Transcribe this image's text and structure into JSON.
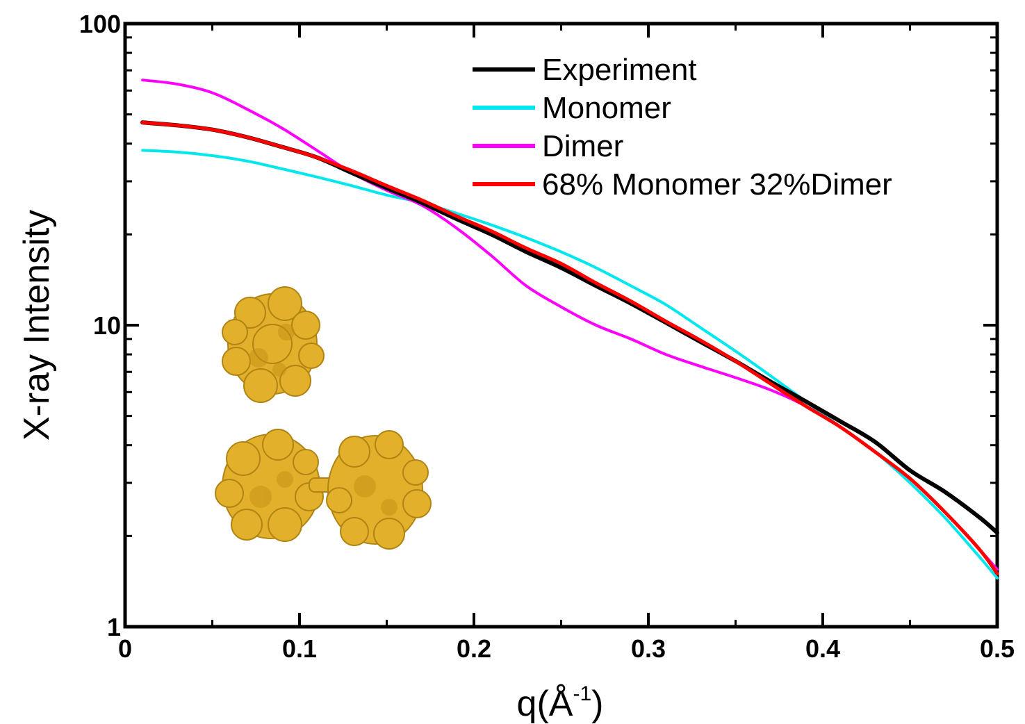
{
  "chart_data": {
    "type": "line",
    "xlabel": "q(Å",
    "xlabel_sup": "-1",
    "xlabel_close": ")",
    "ylabel": "X-ray Intensity",
    "xlim": [
      0,
      0.5
    ],
    "ylim": [
      1,
      100
    ],
    "yscale": "log",
    "grid": false,
    "legend_position": "top-right",
    "x_ticks": [
      0,
      0.1,
      0.2,
      0.3,
      0.4,
      0.5
    ],
    "x_tick_labels": [
      "0",
      "0.1",
      "0.2",
      "0.3",
      "0.4",
      "0.5"
    ],
    "y_ticks": [
      1,
      10,
      100
    ],
    "y_tick_labels": [
      "1",
      "10",
      "100"
    ],
    "x": [
      0.01,
      0.03,
      0.05,
      0.07,
      0.09,
      0.11,
      0.13,
      0.15,
      0.17,
      0.19,
      0.21,
      0.23,
      0.25,
      0.27,
      0.29,
      0.31,
      0.33,
      0.35,
      0.37,
      0.39,
      0.41,
      0.43,
      0.45,
      0.47,
      0.49,
      0.5
    ],
    "series": [
      {
        "name": "Experiment",
        "color": "#000000",
        "width": 6,
        "values": [
          47,
          46,
          44.5,
          42,
          39,
          36,
          32,
          28.5,
          25.5,
          22.5,
          20,
          17.5,
          15.5,
          13.5,
          11.8,
          10.2,
          8.8,
          7.6,
          6.5,
          5.6,
          4.8,
          4.1,
          3.3,
          2.8,
          2.3,
          2.05
        ]
      },
      {
        "name": "Monomer",
        "color": "#00e8ee",
        "width": 4,
        "values": [
          38,
          37.5,
          36.5,
          35,
          33,
          31,
          29,
          27,
          25.5,
          23.5,
          21.5,
          19.5,
          17.5,
          15.5,
          13.5,
          11.7,
          9.8,
          8.2,
          6.8,
          5.6,
          4.6,
          3.8,
          3.0,
          2.3,
          1.7,
          1.45
        ]
      },
      {
        "name": "Dimer",
        "color": "#ff00ff",
        "width": 4,
        "values": [
          65,
          63,
          59,
          52,
          45,
          38,
          32,
          28,
          25,
          21,
          17,
          13.5,
          11.5,
          10,
          9,
          8,
          7.3,
          6.7,
          6.1,
          5.4,
          4.6,
          3.8,
          3.1,
          2.4,
          1.8,
          1.55
        ]
      },
      {
        "name": "68% Monomer 32%Dimer",
        "color": "#ff0000",
        "width": 5,
        "values": [
          47,
          46,
          44.5,
          42,
          39,
          36,
          32.5,
          29,
          26,
          23,
          20.5,
          18,
          16,
          13.8,
          12,
          10.3,
          8.9,
          7.6,
          6.4,
          5.4,
          4.6,
          3.8,
          3.1,
          2.4,
          1.8,
          1.5
        ]
      }
    ]
  }
}
